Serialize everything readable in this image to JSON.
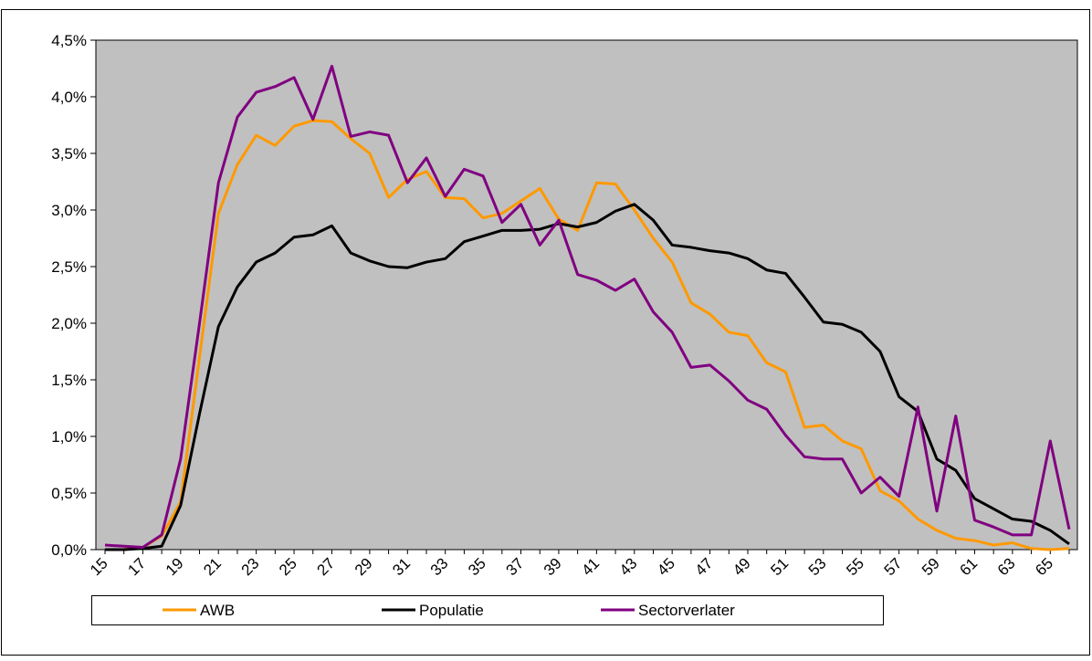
{
  "chart_data": {
    "type": "line",
    "categories": [
      "15",
      null,
      "17",
      null,
      "19",
      null,
      "21",
      null,
      "23",
      null,
      "25",
      null,
      "27",
      null,
      "29",
      null,
      "31",
      null,
      "33",
      null,
      "35",
      null,
      "37",
      null,
      "39",
      null,
      "41",
      null,
      "43",
      null,
      "45",
      null,
      "47",
      null,
      "49",
      null,
      "51",
      null,
      "53",
      null,
      "55",
      null,
      "57",
      null,
      "59",
      null,
      "61",
      null,
      "63",
      null,
      "65",
      null
    ],
    "series": [
      {
        "name": "AWB",
        "color": "#ff9900",
        "values": [
          0,
          0,
          0.02,
          0.12,
          0.42,
          1.7,
          2.97,
          3.4,
          3.66,
          3.57,
          3.74,
          3.79,
          3.78,
          3.63,
          3.5,
          3.11,
          3.27,
          3.34,
          3.11,
          3.1,
          2.93,
          2.97,
          3.08,
          3.19,
          2.92,
          2.82,
          3.24,
          3.23,
          3.0,
          2.75,
          2.54,
          2.18,
          2.08,
          1.92,
          1.89,
          1.65,
          1.57,
          1.08,
          1.1,
          0.96,
          0.89,
          0.52,
          0.43,
          0.27,
          0.17,
          0.1,
          0.08,
          0.04,
          0.06,
          0.01,
          0,
          0.01
        ]
      },
      {
        "name": "Populatie",
        "color": "#000000",
        "values": [
          0,
          0,
          0.01,
          0.03,
          0.39,
          1.2,
          1.97,
          2.32,
          2.54,
          2.62,
          2.76,
          2.78,
          2.86,
          2.62,
          2.55,
          2.5,
          2.49,
          2.54,
          2.57,
          2.72,
          2.77,
          2.82,
          2.82,
          2.83,
          2.88,
          2.85,
          2.89,
          2.99,
          3.05,
          2.91,
          2.69,
          2.67,
          2.64,
          2.62,
          2.57,
          2.47,
          2.44,
          2.23,
          2.01,
          1.99,
          1.92,
          1.75,
          1.35,
          1.22,
          0.8,
          0.7,
          0.45,
          0.36,
          0.27,
          0.25,
          0.17,
          0.05
        ]
      },
      {
        "name": "Sectorverlater",
        "color": "#800080",
        "values": [
          0.04,
          0.03,
          0.02,
          0.13,
          0.8,
          2.0,
          3.24,
          3.82,
          4.04,
          4.09,
          4.17,
          3.8,
          4.27,
          3.65,
          3.69,
          3.66,
          3.24,
          3.46,
          3.12,
          3.36,
          3.3,
          2.89,
          3.05,
          2.69,
          2.91,
          2.43,
          2.38,
          2.29,
          2.39,
          2.1,
          1.92,
          1.61,
          1.63,
          1.49,
          1.32,
          1.24,
          1.01,
          0.82,
          0.8,
          0.8,
          0.5,
          0.64,
          0.47,
          1.26,
          0.34,
          1.18,
          0.26,
          0.2,
          0.13,
          0.13,
          0.96,
          0.18
        ]
      }
    ],
    "ylim": [
      0,
      4.5
    ],
    "yticks": [
      {
        "value": 0,
        "label": "0,0%"
      },
      {
        "value": 0.5,
        "label": "0,5%"
      },
      {
        "value": 1,
        "label": "1,0%"
      },
      {
        "value": 1.5,
        "label": "1,5%"
      },
      {
        "value": 2,
        "label": "2,0%"
      },
      {
        "value": 2.5,
        "label": "2,5%"
      },
      {
        "value": 3,
        "label": "3,0%"
      },
      {
        "value": 3.5,
        "label": "3,5%"
      },
      {
        "value": 4,
        "label": "4,0%"
      },
      {
        "value": 4.5,
        "label": "4,5%"
      }
    ],
    "grid": false,
    "legend": "bottom",
    "background": "#c0c0c0"
  }
}
